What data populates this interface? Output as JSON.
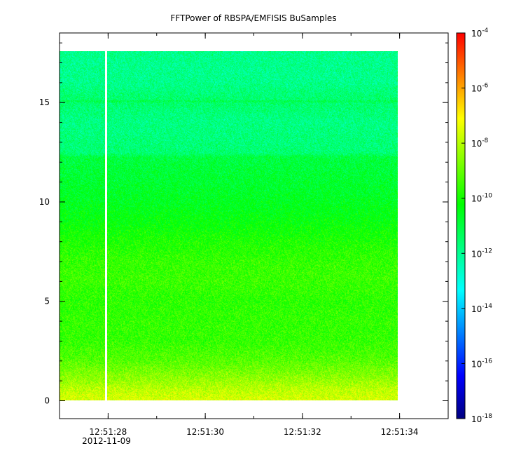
{
  "chart_data": {
    "type": "heatmap",
    "title": "FFTPower of RBSPA/EMFISIS  BuSamples",
    "xlabel": "",
    "ylabel": "",
    "x_ticks": [
      "12:51:28",
      "12:51:30",
      "12:51:32",
      "12:51:34"
    ],
    "x_date_label": "2012-11-09",
    "x_range": [
      "12:51:27.0",
      "12:51:35.0"
    ],
    "data_x_range": [
      "12:51:27.0",
      "12:51:34.1"
    ],
    "data_gap_at": "12:51:28.0",
    "y_ticks": [
      0,
      5,
      10,
      15
    ],
    "ylim": [
      -0.9,
      18.5
    ],
    "data_y_range": [
      0,
      17.5
    ],
    "band_line_y": 15.0,
    "colorbar": {
      "scale": "log",
      "range": [
        1e-18,
        0.0001
      ],
      "colors": [
        "#00007f",
        "#0000ff",
        "#0080ff",
        "#00ffff",
        "#00ff80",
        "#00ff00",
        "#80ff00",
        "#ffff00",
        "#ff8000",
        "#ff0000"
      ],
      "ticks": [
        {
          "base": "10",
          "exp": "-18",
          "value": 1e-18
        },
        {
          "base": "10",
          "exp": "-16",
          "value": 1e-16
        },
        {
          "base": "10",
          "exp": "-14",
          "value": 1e-14
        },
        {
          "base": "10",
          "exp": "-12",
          "value": 1e-12
        },
        {
          "base": "10",
          "exp": "-10",
          "value": 1e-10
        },
        {
          "base": "10",
          "exp": "-8",
          "value": 1e-08
        },
        {
          "base": "10",
          "exp": "-6",
          "value": 1e-06
        },
        {
          "base": "10",
          "exp": "-4",
          "value": 0.0001
        }
      ]
    },
    "power_profile": [
      {
        "y": 0.0,
        "log_power": -7.6
      },
      {
        "y": 0.5,
        "log_power": -7.9
      },
      {
        "y": 1.0,
        "log_power": -8.4
      },
      {
        "y": 1.5,
        "log_power": -8.8
      },
      {
        "y": 2.0,
        "log_power": -9.2
      },
      {
        "y": 3.0,
        "log_power": -9.6
      },
      {
        "y": 4.0,
        "log_power": -9.6
      },
      {
        "y": 5.0,
        "log_power": -9.7
      },
      {
        "y": 6.0,
        "log_power": -9.5
      },
      {
        "y": 7.0,
        "log_power": -9.6
      },
      {
        "y": 8.0,
        "log_power": -9.9
      },
      {
        "y": 9.0,
        "log_power": -10.3
      },
      {
        "y": 10.0,
        "log_power": -10.6
      },
      {
        "y": 11.0,
        "log_power": -10.8
      },
      {
        "y": 12.2,
        "log_power": -11.0
      },
      {
        "y": 12.4,
        "log_power": -11.6
      },
      {
        "y": 14.0,
        "log_power": -11.8
      },
      {
        "y": 15.0,
        "log_power": -11.5
      },
      {
        "y": 16.0,
        "log_power": -11.9
      },
      {
        "y": 17.5,
        "log_power": -11.9
      }
    ]
  }
}
